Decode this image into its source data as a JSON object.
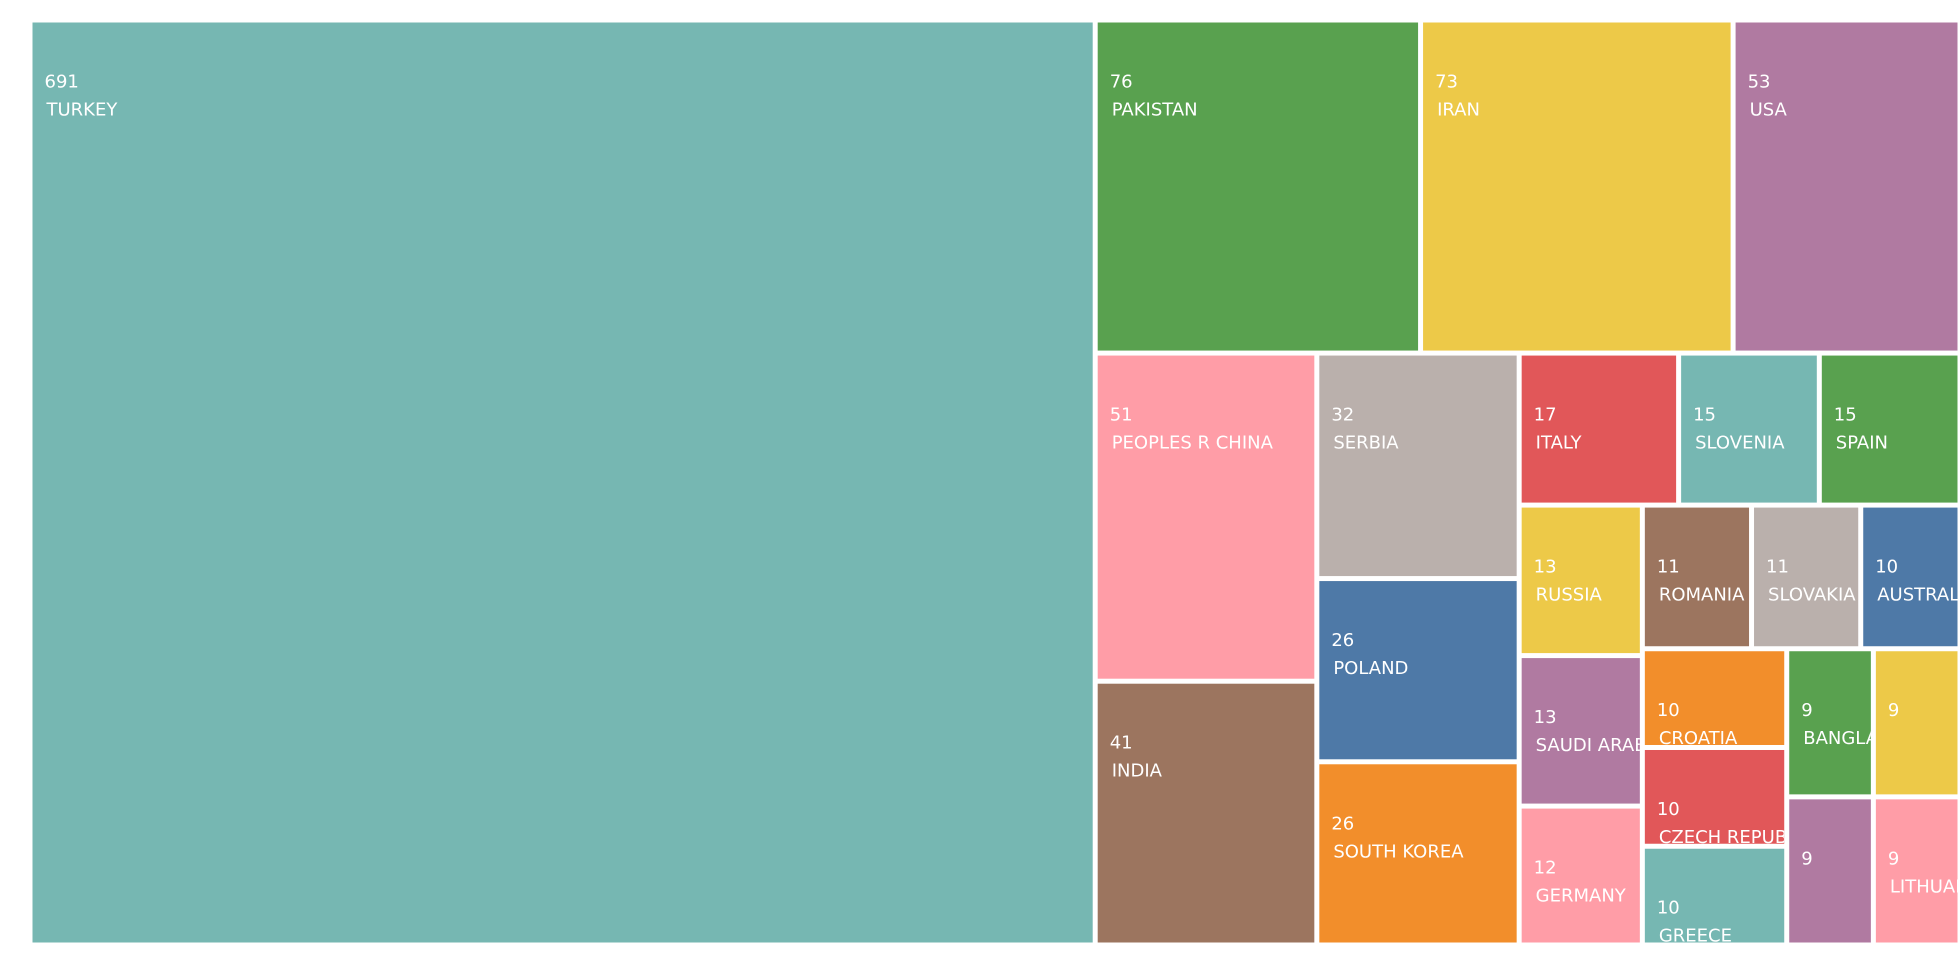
{
  "chart_data": {
    "type": "treemap",
    "categories": [
      "TURKEY",
      "PAKISTAN",
      "IRAN",
      "USA",
      "PEOPLES R CHINA",
      "INDIA",
      "SERBIA",
      "POLAND",
      "SOUTH KOREA",
      "ITALY",
      "SLOVENIA",
      "SPAIN",
      "RUSSIA",
      "SAUDI ARABIA",
      "GERMANY",
      "ROMANIA",
      "SLOVAKIA",
      "AUSTRALIA",
      "CROATIA",
      "CZECH REPUBLIC",
      "GREECE",
      "BANGLADESH",
      null,
      null,
      "LITHUANIA"
    ],
    "values": [
      691,
      76,
      73,
      53,
      51,
      41,
      32,
      26,
      26,
      17,
      15,
      15,
      13,
      13,
      12,
      11,
      11,
      10,
      10,
      10,
      10,
      9,
      9,
      9,
      9
    ],
    "colors": [
      "#76b7b2",
      "#59a14f",
      "#edc948",
      "#b07aa1",
      "#ff9da7",
      "#9c755f",
      "#bab0ac",
      "#4e79a7",
      "#f28e2b",
      "#e15759",
      "#76b7b2",
      "#59a14f",
      "#edc948",
      "#b07aa1",
      "#ff9da7",
      "#9c755f",
      "#bab0ac",
      "#4e79a7",
      "#f28e2b",
      "#e15759",
      "#76b7b2",
      "#59a14f",
      "#edc948",
      "#b07aa1",
      "#ff9da7"
    ]
  }
}
